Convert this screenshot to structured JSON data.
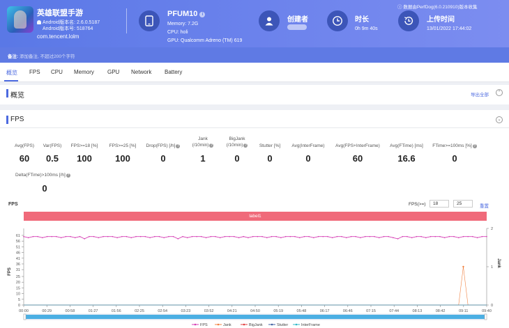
{
  "header": {
    "app_name": "英雄联盟手游",
    "android_version_label": "Android版本名: 2.6.0.5187",
    "android_code_label": "Android版本号: 518764",
    "package": "com.tencent.lolm",
    "device_name": "PFUM10",
    "memory": "Memory: 7.2G",
    "cpu": "CPU: holi",
    "gpu": "GPU: Qualcomm Adreno (TM) 619",
    "creator_title": "创建者",
    "duration_title": "时长",
    "duration_value": "0h 9m 40s",
    "upload_title": "上传时间",
    "upload_value": "13/01/2022 17:44:02",
    "perfdog_note": "数据由PerfDog(6.0.210910)版本收集"
  },
  "note": {
    "label": "备注:",
    "placeholder": "添加备注, 不超过200个字符"
  },
  "tabs": [
    {
      "label": "概览"
    },
    {
      "label": "FPS"
    },
    {
      "label": "CPU"
    },
    {
      "label": "Memory"
    },
    {
      "label": "GPU"
    },
    {
      "label": "Network"
    },
    {
      "label": "Battery"
    }
  ],
  "overview": {
    "title": "概览",
    "export_label": "导出全部"
  },
  "fps_section": {
    "title": "FPS",
    "metrics": [
      {
        "label": "Avg(FPS)",
        "value": "60"
      },
      {
        "label": "Var(FPS)",
        "value": "0.5"
      },
      {
        "label": "FPS>=18 [%]",
        "value": "100"
      },
      {
        "label": "FPS>=25 [%]",
        "value": "100"
      },
      {
        "label": "Drop(FPS) [/h]",
        "value": "0"
      },
      {
        "label": "Jank\n(/10min)",
        "value": "1"
      },
      {
        "label": "BigJank\n(/10min)",
        "value": "0"
      },
      {
        "label": "Stutter [%]",
        "value": "0"
      },
      {
        "label": "Avg(InterFrame)",
        "value": "0"
      },
      {
        "label": "Avg(FPS+InterFrame)",
        "value": "60"
      },
      {
        "label": "Avg(FTime) [ms]",
        "value": "16.6"
      },
      {
        "label": "FTime>=100ms [%]",
        "value": "0"
      },
      {
        "label": "Delta(FTime)>100ms [/h]",
        "value": "0"
      }
    ]
  },
  "chart_controls": {
    "title": "FPS",
    "threshold_label": "FPS(>=)",
    "threshold_1": "18",
    "threshold_2": "25",
    "reset_label": "重置"
  },
  "label_bar": "label1",
  "colors": {
    "accent": "#4c6ae0",
    "fps": "#d63fb5",
    "jank": "#f08040",
    "bigjank": "#e04040",
    "stutter": "#4060a0",
    "interframe": "#30b8c8",
    "label": "#f06a7a",
    "scrollbar": "#3aa7e0"
  },
  "chart_data": {
    "type": "line",
    "title": "",
    "ylabel": "FPS",
    "y2label": "Jank",
    "xlabel": "",
    "ylim": [
      0,
      61
    ],
    "y2lim": [
      0,
      2
    ],
    "yticks": [
      0,
      5,
      10,
      15,
      20,
      25,
      31,
      36,
      41,
      46,
      51,
      56,
      61
    ],
    "y2ticks": [
      0,
      1,
      2
    ],
    "xticks": [
      "00:00",
      "00:29",
      "00:58",
      "01:27",
      "01:56",
      "02:25",
      "02:54",
      "03:23",
      "03:52",
      "04:21",
      "04:50",
      "05:19",
      "05:48",
      "06:17",
      "06:46",
      "07:15",
      "07:44",
      "08:13",
      "08:42",
      "09:11",
      "09:40"
    ],
    "series": [
      {
        "name": "FPS",
        "axis": "left",
        "values": [
          60,
          59,
          60,
          60,
          59,
          60,
          60,
          60,
          59,
          60,
          60,
          59,
          60,
          58,
          60,
          60,
          59,
          60,
          60,
          60,
          59,
          60,
          60,
          59,
          60,
          60,
          60,
          59,
          60,
          60,
          59,
          60,
          60,
          58,
          60,
          59,
          60,
          60,
          60,
          59,
          60,
          60,
          59,
          60,
          60,
          60,
          59,
          60,
          59,
          60,
          60,
          60,
          59,
          60,
          60,
          59,
          60,
          60,
          60,
          59,
          60,
          60,
          59,
          60,
          60,
          60,
          59,
          60,
          60,
          59,
          60,
          60,
          59,
          60,
          60,
          60,
          59,
          60,
          60,
          59,
          58,
          60,
          60,
          59,
          60,
          60,
          59,
          60,
          60,
          60,
          59,
          60,
          60,
          59,
          60,
          60,
          60,
          59,
          60,
          60
        ]
      },
      {
        "name": "Jank",
        "axis": "right",
        "values": [
          0,
          0,
          0,
          0,
          0,
          0,
          0,
          0,
          0,
          0,
          0,
          0,
          0,
          0,
          0,
          0,
          0,
          0,
          0,
          0,
          0,
          0,
          0,
          0,
          0,
          0,
          0,
          0,
          0,
          0,
          0,
          0,
          0,
          0,
          0,
          0,
          0,
          0,
          0,
          0,
          0,
          0,
          0,
          0,
          0,
          0,
          0,
          0,
          0,
          0,
          0,
          0,
          0,
          0,
          0,
          0,
          0,
          0,
          0,
          0,
          0,
          0,
          0,
          0,
          0,
          0,
          0,
          0,
          0,
          0,
          0,
          0,
          0,
          0,
          0,
          0,
          0,
          0,
          0,
          0,
          0,
          0,
          0,
          0,
          0,
          0,
          0,
          0,
          0,
          0,
          0,
          0,
          0,
          0,
          1,
          0,
          0,
          0,
          0,
          0
        ]
      },
      {
        "name": "BigJank",
        "axis": "right",
        "values": [
          0,
          0,
          0,
          0,
          0,
          0,
          0,
          0,
          0,
          0,
          0,
          0,
          0,
          0,
          0,
          0,
          0,
          0,
          0,
          0,
          0,
          0,
          0,
          0,
          0,
          0,
          0,
          0,
          0,
          0,
          0,
          0,
          0,
          0,
          0,
          0,
          0,
          0,
          0,
          0,
          0,
          0,
          0,
          0,
          0,
          0,
          0,
          0,
          0,
          0,
          0,
          0,
          0,
          0,
          0,
          0,
          0,
          0,
          0,
          0,
          0,
          0,
          0,
          0,
          0,
          0,
          0,
          0,
          0,
          0,
          0,
          0,
          0,
          0,
          0,
          0,
          0,
          0,
          0,
          0,
          0,
          0,
          0,
          0,
          0,
          0,
          0,
          0,
          0,
          0,
          0,
          0,
          0,
          0,
          0,
          0,
          0,
          0,
          0,
          0
        ]
      },
      {
        "name": "Stutter",
        "axis": "right",
        "values": [
          0,
          0,
          0,
          0,
          0,
          0,
          0,
          0,
          0,
          0,
          0,
          0,
          0,
          0,
          0,
          0,
          0,
          0,
          0,
          0,
          0,
          0,
          0,
          0,
          0,
          0,
          0,
          0,
          0,
          0,
          0,
          0,
          0,
          0,
          0,
          0,
          0,
          0,
          0,
          0,
          0,
          0,
          0,
          0,
          0,
          0,
          0,
          0,
          0,
          0,
          0,
          0,
          0,
          0,
          0,
          0,
          0,
          0,
          0,
          0,
          0,
          0,
          0,
          0,
          0,
          0,
          0,
          0,
          0,
          0,
          0,
          0,
          0,
          0,
          0,
          0,
          0,
          0,
          0,
          0,
          0,
          0,
          0,
          0,
          0,
          0,
          0,
          0,
          0,
          0,
          0,
          0,
          0,
          0,
          0,
          0,
          0,
          0,
          0,
          0
        ]
      },
      {
        "name": "InterFrame",
        "axis": "left",
        "values": [
          0,
          0,
          0,
          0,
          0,
          0,
          0,
          0,
          0,
          0,
          0,
          0,
          0,
          0,
          0,
          0,
          0,
          0,
          0,
          0,
          0,
          0,
          0,
          0,
          0,
          0,
          0,
          0,
          0,
          0,
          0,
          0,
          0,
          0,
          0,
          0,
          0,
          0,
          0,
          0,
          0,
          0,
          0,
          0,
          0,
          0,
          0,
          0,
          0,
          0,
          0,
          0,
          0,
          0,
          0,
          0,
          0,
          0,
          0,
          0,
          0,
          0,
          0,
          0,
          0,
          0,
          0,
          0,
          0,
          0,
          0,
          0,
          0,
          0,
          0,
          0,
          0,
          0,
          0,
          0,
          0,
          0,
          0,
          0,
          0,
          0,
          0,
          0,
          0,
          0,
          0,
          0,
          0,
          0,
          0,
          0,
          0,
          0,
          0,
          0
        ]
      }
    ],
    "legend_position": "bottom",
    "grid": false
  }
}
